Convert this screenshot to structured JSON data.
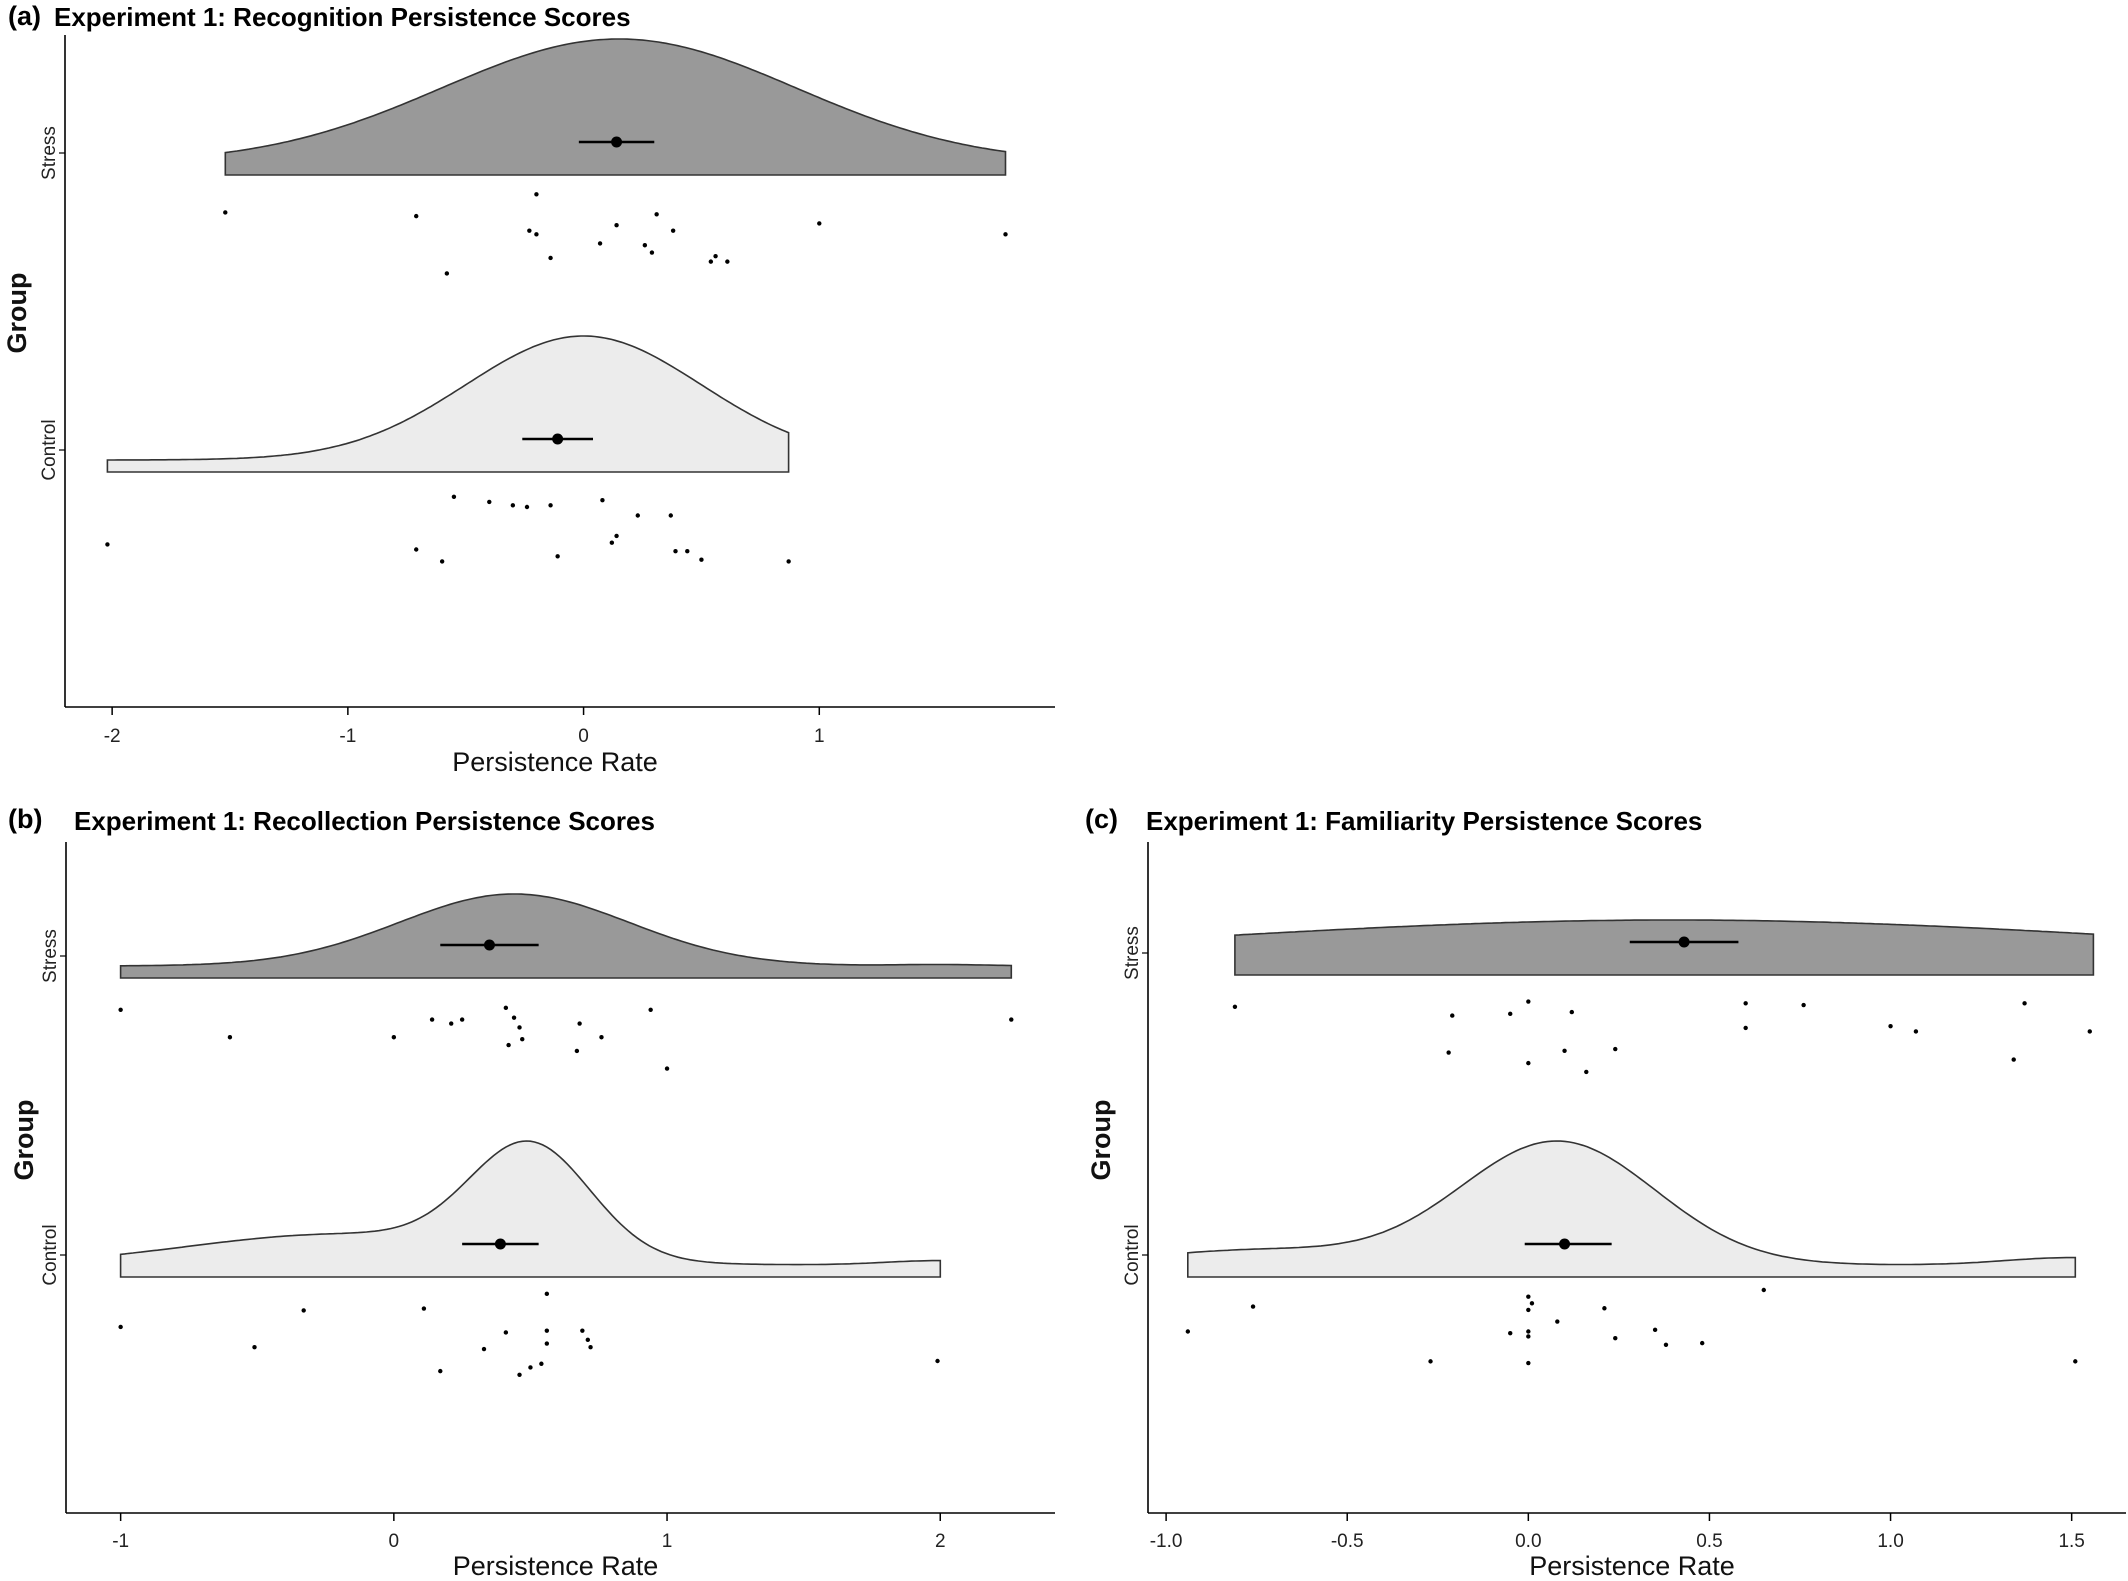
{
  "chart_data": [
    {
      "panel": "(a)",
      "type": "raincloud",
      "title": "Experiment 1: Recognition Persistence Scores",
      "xlabel": "Persistence Rate",
      "ylabel": "Group",
      "xlim": [
        -2.2,
        2.0
      ],
      "x_ticks": [
        -2,
        -1,
        0,
        1
      ],
      "x_tick_labels": [
        "-2",
        "-1",
        "0",
        "1"
      ],
      "grid": false,
      "groups": [
        {
          "name": "Stress",
          "fill": "#999999",
          "range": [
            -1.52,
            1.79
          ],
          "density_mode": 0.15,
          "density_sd": 0.75,
          "mean": 0.14,
          "ci": [
            -0.02,
            0.3
          ],
          "points": [
            {
              "x": -1.52,
              "j": 0.72
            },
            {
              "x": -0.71,
              "j": 0.68
            },
            {
              "x": -0.58,
              "j": 0.05
            },
            {
              "x": -0.2,
              "j": 0.92
            },
            {
              "x": -0.23,
              "j": 0.52
            },
            {
              "x": -0.2,
              "j": 0.48
            },
            {
              "x": -0.14,
              "j": 0.22
            },
            {
              "x": 0.07,
              "j": 0.38
            },
            {
              "x": 0.14,
              "j": 0.58
            },
            {
              "x": 0.26,
              "j": 0.36
            },
            {
              "x": 0.29,
              "j": 0.28
            },
            {
              "x": 0.31,
              "j": 0.7
            },
            {
              "x": 0.38,
              "j": 0.52
            },
            {
              "x": 0.54,
              "j": 0.18
            },
            {
              "x": 0.56,
              "j": 0.24
            },
            {
              "x": 0.61,
              "j": 0.18
            },
            {
              "x": 1.0,
              "j": 0.6
            },
            {
              "x": 1.79,
              "j": 0.48
            }
          ]
        },
        {
          "name": "Control",
          "fill": "#ececec",
          "range": [
            -2.02,
            0.87
          ],
          "density_mode": 0.0,
          "density_sd": 0.5,
          "mean": -0.11,
          "ci": [
            -0.26,
            0.04
          ],
          "points": [
            {
              "x": -2.02,
              "j": 0.36
            },
            {
              "x": -0.71,
              "j": 0.3
            },
            {
              "x": -0.6,
              "j": 0.16
            },
            {
              "x": -0.55,
              "j": 0.92
            },
            {
              "x": -0.4,
              "j": 0.86
            },
            {
              "x": -0.3,
              "j": 0.82
            },
            {
              "x": -0.24,
              "j": 0.8
            },
            {
              "x": -0.14,
              "j": 0.82
            },
            {
              "x": -0.11,
              "j": 0.22
            },
            {
              "x": 0.08,
              "j": 0.88
            },
            {
              "x": 0.12,
              "j": 0.38
            },
            {
              "x": 0.14,
              "j": 0.46
            },
            {
              "x": 0.23,
              "j": 0.7
            },
            {
              "x": 0.37,
              "j": 0.7
            },
            {
              "x": 0.39,
              "j": 0.28
            },
            {
              "x": 0.44,
              "j": 0.28
            },
            {
              "x": 0.5,
              "j": 0.18
            },
            {
              "x": 0.87,
              "j": 0.16
            }
          ]
        }
      ]
    },
    {
      "panel": "(b)",
      "type": "raincloud",
      "title": "Experiment 1: Recollection Persistence Scores",
      "xlabel": "Persistence Rate",
      "ylabel": "Group",
      "xlim": [
        -1.2,
        2.42
      ],
      "x_ticks": [
        -1,
        0,
        1,
        2
      ],
      "x_tick_labels": [
        "-1",
        "0",
        "1",
        "2"
      ],
      "grid": false,
      "groups": [
        {
          "name": "Stress",
          "fill": "#999999",
          "range": [
            -1.0,
            2.26
          ],
          "density_mode": 0.44,
          "density_sd": 0.42,
          "tail_bump": {
            "x": 2.0,
            "sd": 0.18,
            "weight": 0.02
          },
          "mean": 0.35,
          "ci": [
            0.17,
            0.53
          ],
          "points": [
            {
              "x": -1.0,
              "j": 0.9
            },
            {
              "x": -0.6,
              "j": 0.62
            },
            {
              "x": 0.0,
              "j": 0.62
            },
            {
              "x": 0.14,
              "j": 0.8
            },
            {
              "x": 0.21,
              "j": 0.76
            },
            {
              "x": 0.25,
              "j": 0.8
            },
            {
              "x": 0.41,
              "j": 0.92
            },
            {
              "x": 0.44,
              "j": 0.82
            },
            {
              "x": 0.42,
              "j": 0.54
            },
            {
              "x": 0.47,
              "j": 0.6
            },
            {
              "x": 0.46,
              "j": 0.72
            },
            {
              "x": 0.68,
              "j": 0.76
            },
            {
              "x": 0.67,
              "j": 0.48
            },
            {
              "x": 0.76,
              "j": 0.62
            },
            {
              "x": 0.94,
              "j": 0.9
            },
            {
              "x": 1.0,
              "j": 0.3
            },
            {
              "x": 2.26,
              "j": 0.8
            }
          ]
        },
        {
          "name": "Control",
          "fill": "#ececec",
          "range": [
            -1.0,
            2.0
          ],
          "density_mode": 0.5,
          "density_sd": 0.22,
          "tail_bump": {
            "x": -0.2,
            "sd": 0.55,
            "weight": 0.28
          },
          "tail_bump2": {
            "x": 2.0,
            "sd": 0.2,
            "weight": 0.04
          },
          "mean": 0.39,
          "ci": [
            0.25,
            0.53
          ],
          "points": [
            {
              "x": -1.0,
              "j": 0.62
            },
            {
              "x": -0.51,
              "j": 0.4
            },
            {
              "x": -0.33,
              "j": 0.8
            },
            {
              "x": 0.11,
              "j": 0.82
            },
            {
              "x": 0.17,
              "j": 0.14
            },
            {
              "x": 0.33,
              "j": 0.38
            },
            {
              "x": 0.41,
              "j": 0.56
            },
            {
              "x": 0.46,
              "j": 0.1
            },
            {
              "x": 0.5,
              "j": 0.18
            },
            {
              "x": 0.54,
              "j": 0.22
            },
            {
              "x": 0.56,
              "j": 0.98
            },
            {
              "x": 0.56,
              "j": 0.58
            },
            {
              "x": 0.56,
              "j": 0.44
            },
            {
              "x": 0.69,
              "j": 0.58
            },
            {
              "x": 0.71,
              "j": 0.48
            },
            {
              "x": 0.72,
              "j": 0.4
            },
            {
              "x": 1.99,
              "j": 0.25
            }
          ]
        }
      ]
    },
    {
      "panel": "(c)",
      "type": "raincloud",
      "title": "Experiment 1: Familiarity Persistence Scores",
      "xlabel": "Persistence Rate",
      "ylabel": "Group",
      "xlim": [
        -1.05,
        1.65
      ],
      "x_ticks": [
        -1.0,
        -0.5,
        0.0,
        0.5,
        1.0,
        1.5
      ],
      "x_tick_labels": [
        "-1.0",
        "-0.5",
        "0.0",
        "0.5",
        "1.0",
        "1.5"
      ],
      "grid": false,
      "groups": [
        {
          "name": "Stress",
          "fill": "#999999",
          "range": [
            -0.81,
            1.56
          ],
          "density_mode": 0.4,
          "density_sd": 1.3,
          "mean": 0.43,
          "ci": [
            0.28,
            0.58
          ],
          "points": [
            {
              "x": -0.81,
              "j": 0.9
            },
            {
              "x": -0.22,
              "j": 0.38
            },
            {
              "x": -0.21,
              "j": 0.8
            },
            {
              "x": -0.05,
              "j": 0.82
            },
            {
              "x": 0.0,
              "j": 0.96
            },
            {
              "x": 0.0,
              "j": 0.26
            },
            {
              "x": 0.1,
              "j": 0.4
            },
            {
              "x": 0.12,
              "j": 0.84
            },
            {
              "x": 0.16,
              "j": 0.16
            },
            {
              "x": 0.24,
              "j": 0.42
            },
            {
              "x": 0.6,
              "j": 0.94
            },
            {
              "x": 0.6,
              "j": 0.66
            },
            {
              "x": 0.76,
              "j": 0.92
            },
            {
              "x": 1.0,
              "j": 0.68
            },
            {
              "x": 1.07,
              "j": 0.62
            },
            {
              "x": 1.34,
              "j": 0.3
            },
            {
              "x": 1.37,
              "j": 0.94
            },
            {
              "x": 1.55,
              "j": 0.62
            }
          ]
        },
        {
          "name": "Control",
          "fill": "#ececec",
          "range": [
            -0.94,
            1.51
          ],
          "density_mode": 0.08,
          "density_sd": 0.27,
          "tail_bump": {
            "x": -0.75,
            "sd": 0.3,
            "weight": 0.12
          },
          "tail_bump2": {
            "x": 1.5,
            "sd": 0.18,
            "weight": 0.06
          },
          "mean": 0.1,
          "ci": [
            -0.01,
            0.23
          ],
          "points": [
            {
              "x": -0.94,
              "j": 0.5
            },
            {
              "x": -0.76,
              "j": 0.8
            },
            {
              "x": -0.27,
              "j": 0.14
            },
            {
              "x": -0.05,
              "j": 0.48
            },
            {
              "x": 0.0,
              "j": 0.92
            },
            {
              "x": 0.0,
              "j": 0.76
            },
            {
              "x": 0.01,
              "j": 0.84
            },
            {
              "x": 0.0,
              "j": 0.5
            },
            {
              "x": 0.0,
              "j": 0.44
            },
            {
              "x": 0.0,
              "j": 0.12
            },
            {
              "x": 0.08,
              "j": 0.62
            },
            {
              "x": 0.21,
              "j": 0.78
            },
            {
              "x": 0.24,
              "j": 0.42
            },
            {
              "x": 0.35,
              "j": 0.52
            },
            {
              "x": 0.38,
              "j": 0.34
            },
            {
              "x": 0.48,
              "j": 0.36
            },
            {
              "x": 0.65,
              "j": 1.0
            },
            {
              "x": 1.51,
              "j": 0.14
            }
          ]
        }
      ]
    }
  ]
}
